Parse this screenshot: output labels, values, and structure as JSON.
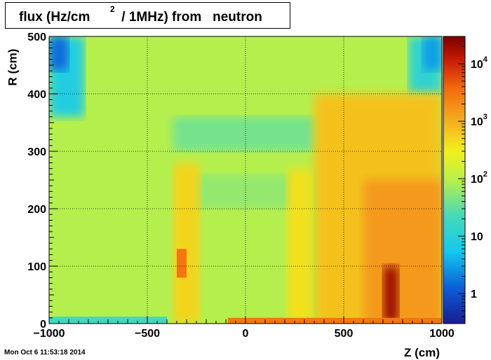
{
  "title": {
    "main": "flux (Hz/cm",
    "superscript": "2",
    "rest": " / 1MHz) from   neutron"
  },
  "timestamp": "Mon Oct  6 11:53:18 2014",
  "chart_data": {
    "type": "heatmap",
    "title": "flux (Hz/cm^2 / 1MHz) from   neutron",
    "xlabel": "Z (cm)",
    "ylabel": "R (cm)",
    "xlim": [
      -1000,
      1000
    ],
    "ylim": [
      0,
      500
    ],
    "x_ticks": [
      -1000,
      -500,
      0,
      500,
      1000
    ],
    "x_tick_labels": [
      "−1000",
      "−500",
      "0",
      "500",
      "1000"
    ],
    "y_ticks": [
      0,
      100,
      200,
      300,
      400,
      500
    ],
    "y_tick_labels": [
      "0",
      "100",
      "200",
      "300",
      "400",
      "500"
    ],
    "grid": true,
    "colorbar": {
      "scale": "log",
      "range": [
        0.3,
        30000
      ],
      "tick_labels": [
        {
          "value": 1,
          "base": "1",
          "exp": ""
        },
        {
          "value": 10,
          "base": "10",
          "exp": ""
        },
        {
          "value": 100,
          "base": "10",
          "exp": "2"
        },
        {
          "value": 1000,
          "base": "10",
          "exp": "3"
        },
        {
          "value": 10000,
          "base": "10",
          "exp": "4"
        }
      ]
    },
    "regions": [
      {
        "z": [
          -1000,
          1000
        ],
        "r": [
          0,
          500
        ],
        "flux": 90
      },
      {
        "z": [
          -1000,
          -820
        ],
        "r": [
          360,
          500
        ],
        "flux": 8
      },
      {
        "z": [
          -1000,
          -900
        ],
        "r": [
          440,
          500
        ],
        "flux": 1.5
      },
      {
        "z": [
          830,
          1000
        ],
        "r": [
          400,
          500
        ],
        "flux": 12
      },
      {
        "z": [
          900,
          1000
        ],
        "r": [
          440,
          500
        ],
        "flux": 3
      },
      {
        "z": [
          -370,
          360
        ],
        "r": [
          300,
          360
        ],
        "flux": 40
      },
      {
        "z": [
          -280,
          290
        ],
        "r": [
          200,
          260
        ],
        "flux": 60
      },
      {
        "z": [
          350,
          1000
        ],
        "r": [
          0,
          400
        ],
        "flux": 700
      },
      {
        "z": [
          600,
          1000
        ],
        "r": [
          0,
          250
        ],
        "flux": 1500
      },
      {
        "z": [
          700,
          780
        ],
        "r": [
          0,
          100
        ],
        "flux": 20000
      },
      {
        "z": [
          -370,
          -230
        ],
        "r": [
          0,
          280
        ],
        "flux": 500
      },
      {
        "z": [
          -350,
          -300
        ],
        "r": [
          80,
          130
        ],
        "flux": 3000
      },
      {
        "z": [
          210,
          340
        ],
        "r": [
          0,
          270
        ],
        "flux": 400
      },
      {
        "z": [
          -1000,
          -400
        ],
        "r": [
          0,
          12
        ],
        "flux": 20
      },
      {
        "z": [
          -90,
          1000
        ],
        "r": [
          0,
          10
        ],
        "flux": 3000
      }
    ]
  }
}
